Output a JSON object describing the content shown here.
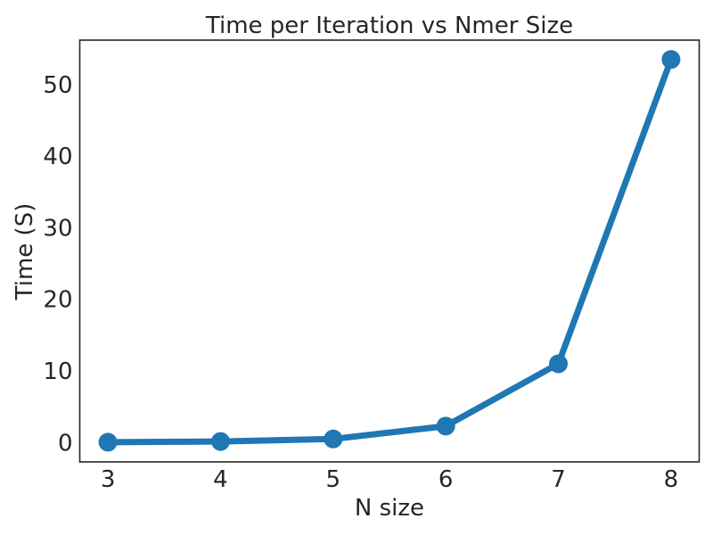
{
  "chart_data": {
    "type": "line",
    "title": "Time per Iteration vs Nmer Size",
    "xlabel": "N size",
    "ylabel": "Time (S)",
    "x": [
      3,
      4,
      5,
      6,
      7,
      8
    ],
    "series": [
      {
        "values": [
          0.05,
          0.15,
          0.5,
          2.3,
          11.0,
          53.5
        ]
      }
    ],
    "xlim": [
      2.75,
      8.25
    ],
    "ylim": [
      -2.7,
      56.2
    ],
    "xticks": [
      3,
      4,
      5,
      6,
      7,
      8
    ],
    "yticks": [
      0,
      10,
      20,
      30,
      40,
      50
    ],
    "grid": false,
    "line_color": "#1f77b4"
  }
}
